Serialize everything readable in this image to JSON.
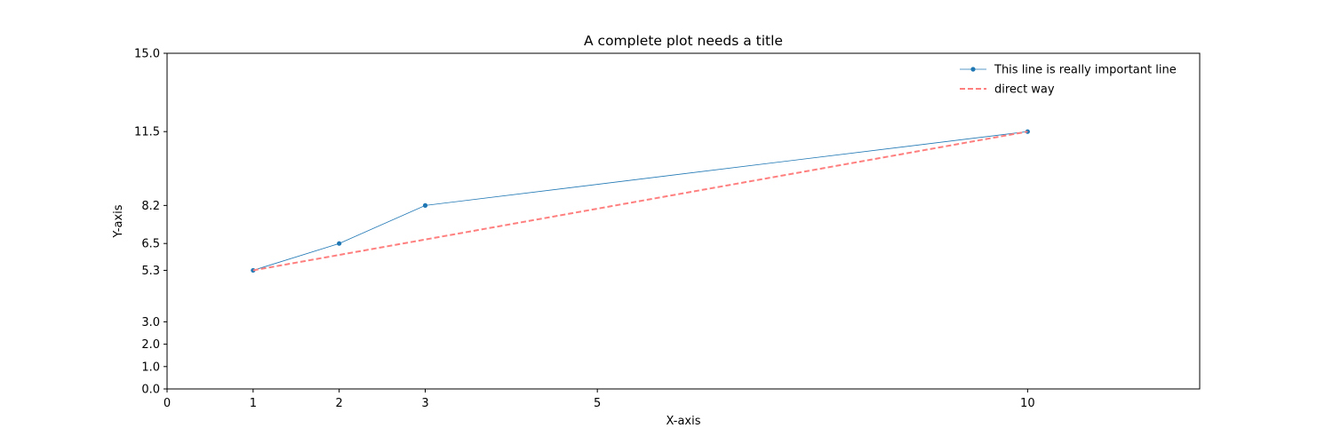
{
  "chart_data": {
    "type": "line",
    "title": "A complete plot needs a title",
    "xlabel": "X-axis",
    "ylabel": "Y-axis",
    "xlim": [
      0,
      12
    ],
    "ylim": [
      0,
      15
    ],
    "xticks": [
      0,
      1,
      2,
      3,
      5,
      10
    ],
    "xtick_labels": [
      "0",
      "1",
      "2",
      "3",
      "5",
      "10"
    ],
    "yticks": [
      0,
      1,
      2,
      3,
      5.3,
      6.5,
      8.2,
      11.5,
      15
    ],
    "ytick_labels": [
      "0.0",
      "1.0",
      "2.0",
      "3.0",
      "5.3",
      "6.5",
      "8.2",
      "11.5",
      "15.0"
    ],
    "grid": false,
    "legend_position": "top-right",
    "series": [
      {
        "name": "This line is really important line",
        "x": [
          1,
          2,
          3,
          10
        ],
        "y": [
          5.3,
          6.5,
          8.2,
          11.5
        ],
        "color": "#1f77b4",
        "style": "solid",
        "marker": "circle"
      },
      {
        "name": "direct way",
        "x": [
          1,
          10
        ],
        "y": [
          5.3,
          11.5
        ],
        "color": "#ff7f7f",
        "style": "dashed",
        "marker": "none"
      }
    ]
  }
}
